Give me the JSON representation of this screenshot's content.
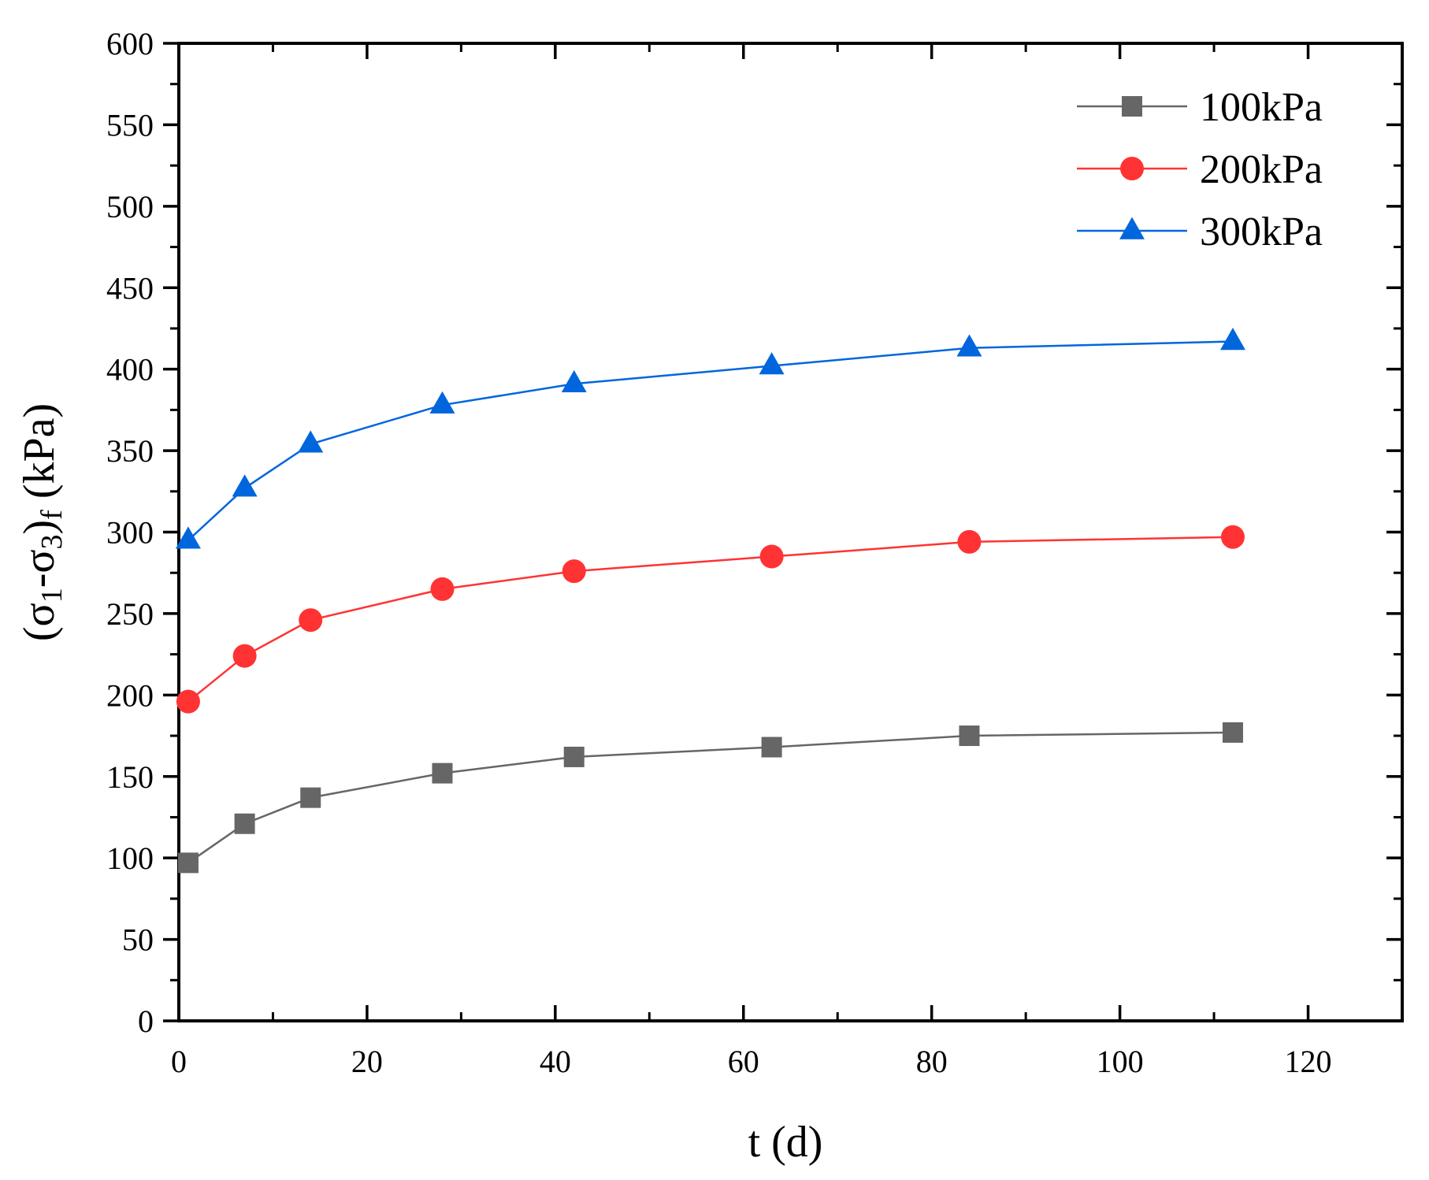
{
  "chart_data": {
    "type": "line",
    "title": "",
    "xlabel": "t (d)",
    "ylabel": {
      "open": "(σ",
      "sub1": "1",
      "mid": "-σ",
      "sub3": "3",
      "close": ")",
      "subf": "f",
      "unit": " (kPa)"
    },
    "xlim": [
      0,
      130
    ],
    "ylim": [
      0,
      600
    ],
    "x_major_ticks": [
      0,
      20,
      40,
      60,
      80,
      100,
      120
    ],
    "y_major_ticks": [
      0,
      50,
      100,
      150,
      200,
      250,
      300,
      350,
      400,
      450,
      500,
      550,
      600
    ],
    "x_minor_step": 10,
    "y_minor_step": 25,
    "grid": false,
    "legend_position": "top-right",
    "x": [
      1,
      7,
      14,
      28,
      42,
      63,
      84,
      112
    ],
    "series": [
      {
        "name": "100kPa",
        "color": "#666666",
        "marker": "square",
        "values": [
          97,
          121,
          137,
          152,
          162,
          168,
          175,
          177
        ]
      },
      {
        "name": "200kPa",
        "color": "#ff3333",
        "marker": "circle",
        "values": [
          196,
          224,
          246,
          265,
          276,
          285,
          294,
          297
        ]
      },
      {
        "name": "300kPa",
        "color": "#0066dd",
        "marker": "triangle",
        "values": [
          295,
          327,
          354,
          378,
          391,
          402,
          413,
          417
        ]
      }
    ]
  }
}
